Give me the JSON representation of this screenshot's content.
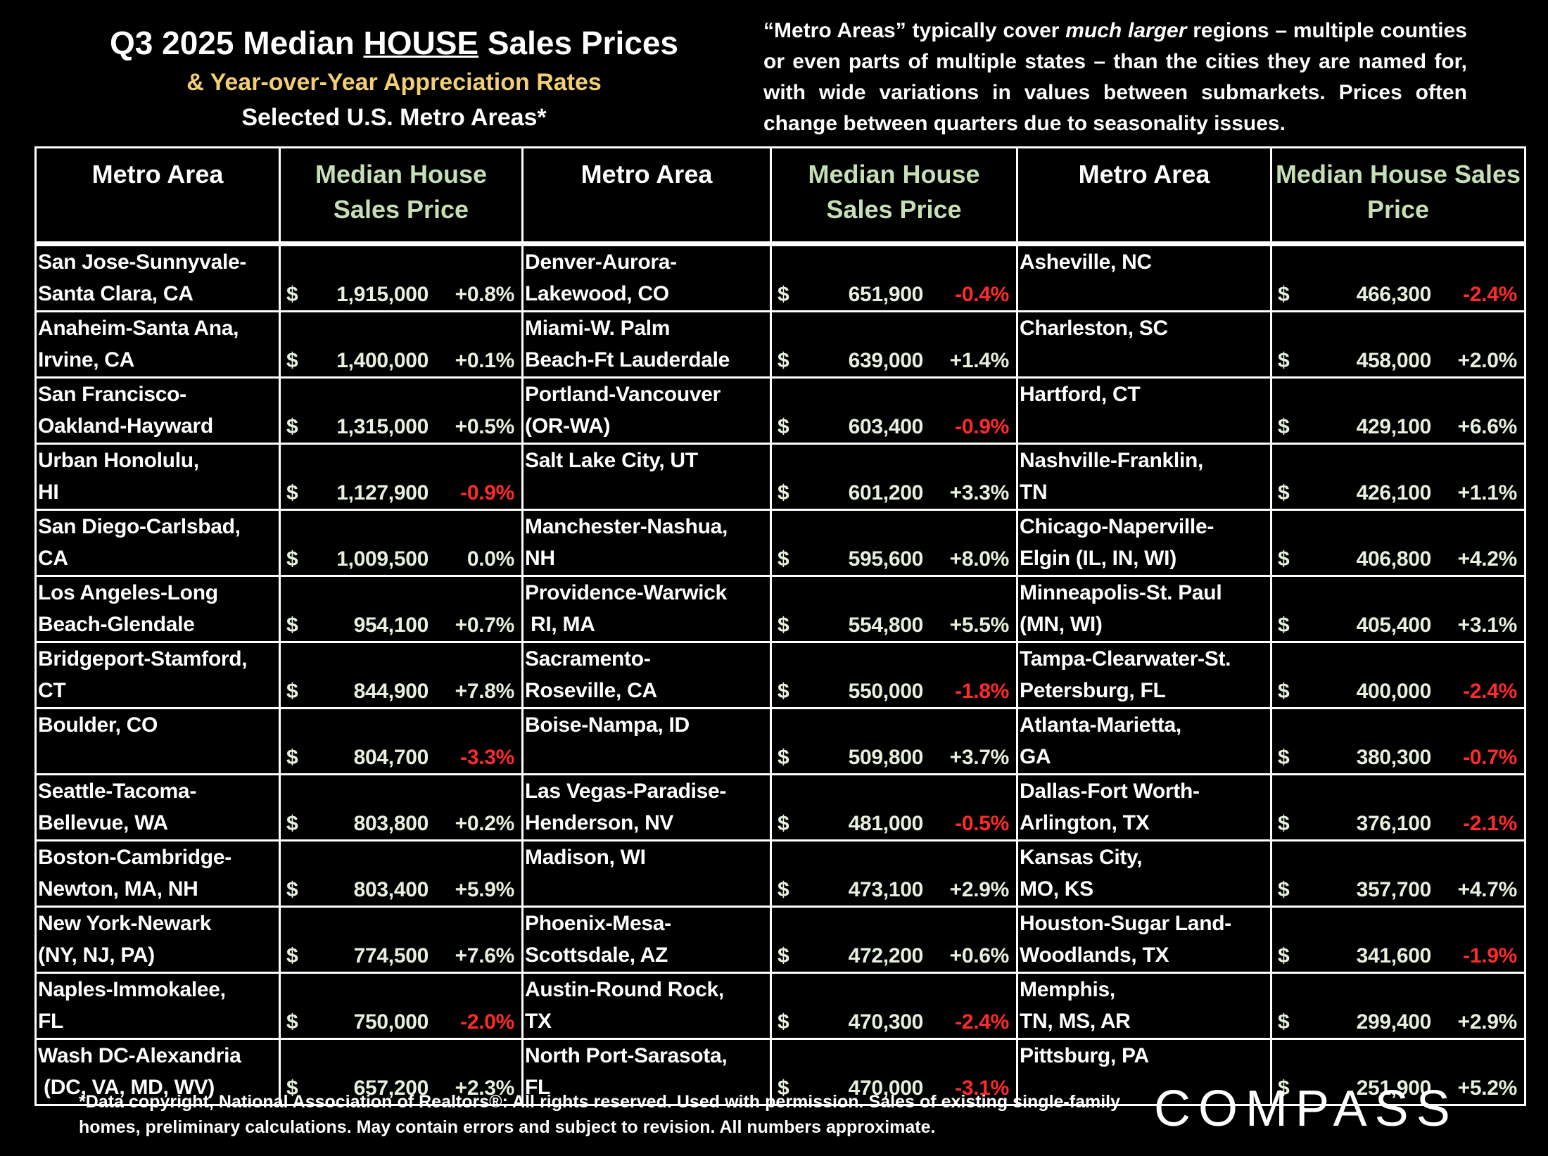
{
  "header": {
    "title_pre": "Q3 2025 Median",
    "title_em": "HOUSE",
    "title_post": "Sales Prices",
    "subtitle": "& Year-over-Year Appreciation Rates",
    "subtitle2": "Selected U.S. Metro Areas*"
  },
  "note": {
    "pre": "“Metro Areas” typically cover",
    "em": "much larger",
    "post": "regions – multiple counties or even parts of multiple states – than the cities they are named for, with wide variations in values between submarkets. Prices often change between quarters due to seasonality issues."
  },
  "table": {
    "headers": [
      "Metro Area",
      "Median House Sales Price",
      "Metro Area",
      "Median House Sales Price",
      "Metro Area",
      "Median House Sales Price"
    ],
    "rows": [
      [
        {
          "metro": "San Jose-Sunnyvale-\nSanta Clara, CA",
          "currency": "$",
          "price": "1,915,000",
          "change": "+0.8%"
        },
        {
          "metro": "Denver-Aurora-\nLakewood, CO",
          "currency": "$",
          "price": "651,900",
          "change": "-0.4%"
        },
        {
          "metro": "Asheville, NC",
          "currency": "$",
          "price": "466,300",
          "change": "-2.4%"
        }
      ],
      [
        {
          "metro": "Anaheim-Santa Ana,\nIrvine, CA",
          "currency": "$",
          "price": "1,400,000",
          "change": "+0.1%"
        },
        {
          "metro": "Miami-W. Palm\nBeach-Ft Lauderdale",
          "currency": "$",
          "price": "639,000",
          "change": "+1.4%"
        },
        {
          "metro": "Charleston, SC",
          "currency": "$",
          "price": "458,000",
          "change": "+2.0%"
        }
      ],
      [
        {
          "metro": "San Francisco-\nOakland-Hayward",
          "currency": "$",
          "price": "1,315,000",
          "change": "+0.5%"
        },
        {
          "metro": "Portland-Vancouver\n(OR-WA)",
          "currency": "$",
          "price": "603,400",
          "change": "-0.9%"
        },
        {
          "metro": "Hartford, CT",
          "currency": "$",
          "price": "429,100",
          "change": "+6.6%"
        }
      ],
      [
        {
          "metro": "Urban Honolulu,\nHI",
          "currency": "$",
          "price": "1,127,900",
          "change": "-0.9%"
        },
        {
          "metro": "Salt Lake City, UT",
          "currency": "$",
          "price": "601,200",
          "change": "+3.3%"
        },
        {
          "metro": "Nashville-Franklin,\nTN",
          "currency": "$",
          "price": "426,100",
          "change": "+1.1%"
        }
      ],
      [
        {
          "metro": "San Diego-Carlsbad,\nCA",
          "currency": "$",
          "price": "1,009,500",
          "change": "0.0%"
        },
        {
          "metro": "Manchester-Nashua,\nNH",
          "currency": "$",
          "price": "595,600",
          "change": "+8.0%"
        },
        {
          "metro": "Chicago-Naperville-\nElgin (IL, IN, WI)",
          "currency": "$",
          "price": "406,800",
          "change": "+4.2%"
        }
      ],
      [
        {
          "metro": "Los Angeles-Long\nBeach-Glendale",
          "currency": "$",
          "price": "954,100",
          "change": "+0.7%"
        },
        {
          "metro": "Providence-Warwick\n RI, MA",
          "currency": "$",
          "price": "554,800",
          "change": "+5.5%"
        },
        {
          "metro": "Minneapolis-St. Paul\n(MN, WI)",
          "currency": "$",
          "price": "405,400",
          "change": "+3.1%"
        }
      ],
      [
        {
          "metro": "Bridgeport-Stamford,\nCT",
          "currency": "$",
          "price": "844,900",
          "change": "+7.8%"
        },
        {
          "metro": "Sacramento-\nRoseville, CA",
          "currency": "$",
          "price": "550,000",
          "change": "-1.8%"
        },
        {
          "metro": "Tampa-Clearwater-St.\nPetersburg, FL",
          "currency": "$",
          "price": "400,000",
          "change": "-2.4%"
        }
      ],
      [
        {
          "metro": "Boulder, CO",
          "currency": "$",
          "price": "804,700",
          "change": "-3.3%"
        },
        {
          "metro": "Boise-Nampa, ID",
          "currency": "$",
          "price": "509,800",
          "change": "+3.7%"
        },
        {
          "metro": "Atlanta-Marietta,\nGA",
          "currency": "$",
          "price": "380,300",
          "change": "-0.7%"
        }
      ],
      [
        {
          "metro": "Seattle-Tacoma-\nBellevue, WA",
          "currency": "$",
          "price": "803,800",
          "change": "+0.2%"
        },
        {
          "metro": "Las Vegas-Paradise-\nHenderson, NV",
          "currency": "$",
          "price": "481,000",
          "change": "-0.5%"
        },
        {
          "metro": "Dallas-Fort Worth-\nArlington, TX",
          "currency": "$",
          "price": "376,100",
          "change": "-2.1%"
        }
      ],
      [
        {
          "metro": "Boston-Cambridge-\nNewton, MA, NH",
          "currency": "$",
          "price": "803,400",
          "change": "+5.9%"
        },
        {
          "metro": "Madison, WI",
          "currency": "$",
          "price": "473,100",
          "change": "+2.9%"
        },
        {
          "metro": "Kansas City,\nMO, KS",
          "currency": "$",
          "price": "357,700",
          "change": "+4.7%"
        }
      ],
      [
        {
          "metro": "New York-Newark\n(NY, NJ, PA)",
          "currency": "$",
          "price": "774,500",
          "change": "+7.6%"
        },
        {
          "metro": "Phoenix-Mesa-\nScottsdale, AZ",
          "currency": "$",
          "price": "472,200",
          "change": "+0.6%"
        },
        {
          "metro": "Houston-Sugar Land-\nWoodlands, TX",
          "currency": "$",
          "price": "341,600",
          "change": "-1.9%"
        }
      ],
      [
        {
          "metro": "Naples-Immokalee,\nFL",
          "currency": "$",
          "price": "750,000",
          "change": "-2.0%"
        },
        {
          "metro": "Austin-Round Rock,\nTX",
          "currency": "$",
          "price": "470,300",
          "change": "-2.4%"
        },
        {
          "metro": "Memphis,\nTN, MS, AR",
          "currency": "$",
          "price": "299,400",
          "change": "+2.9%"
        }
      ],
      [
        {
          "metro": "Wash DC-Alexandria\n (DC, VA, MD, WV)",
          "currency": "$",
          "price": "657,200",
          "change": "+2.3%"
        },
        {
          "metro": "North Port-Sarasota,\nFL",
          "currency": "$",
          "price": "470,000",
          "change": "-3.1%"
        },
        {
          "metro": "Pittsburg, PA",
          "currency": "$",
          "price": "251,900",
          "change": "+5.2%"
        }
      ]
    ]
  },
  "footer": {
    "text": "*Data copyright, National Association of Realtors®: All rights reserved. Used with permission. Sales of existing single-family homes, preliminary calculations. May contain errors and subject to revision. All numbers approximate.",
    "logo": "COMPASS"
  }
}
